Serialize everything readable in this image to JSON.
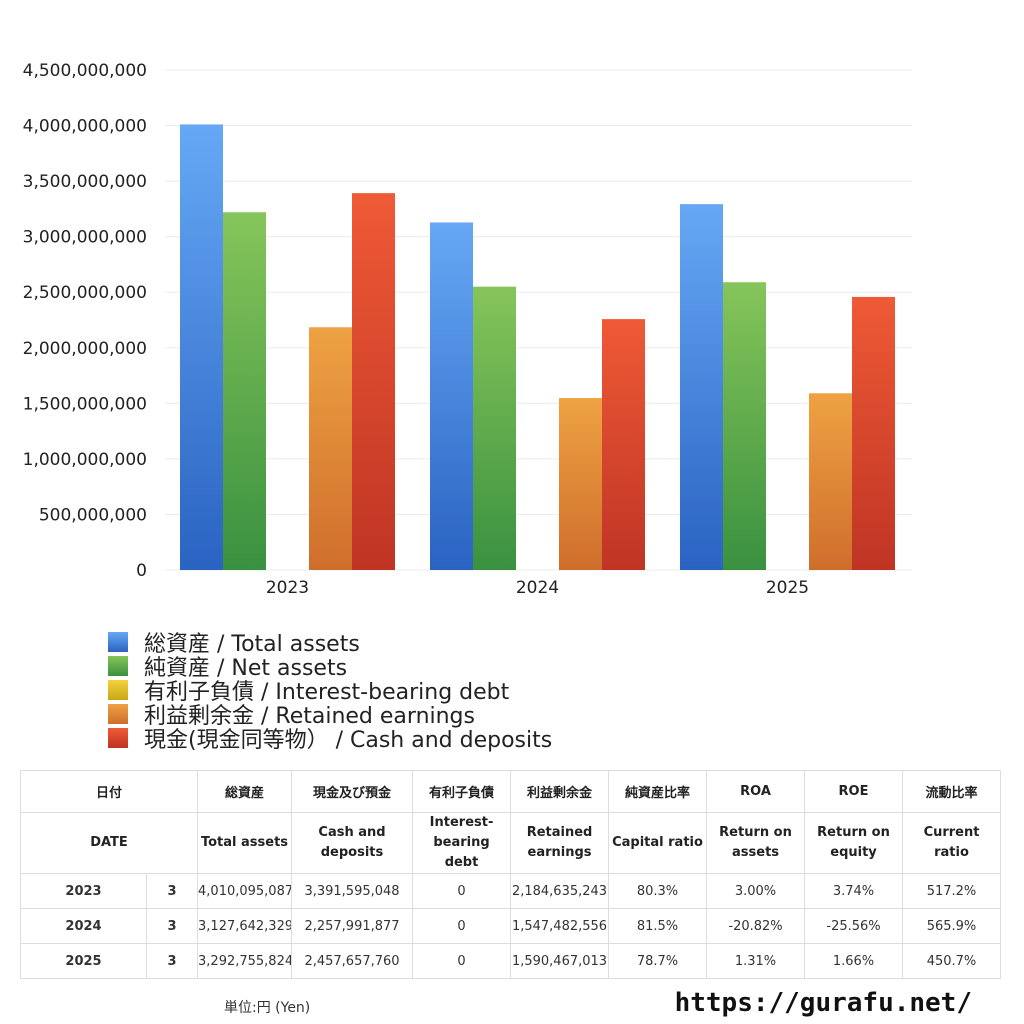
{
  "chart_data": {
    "type": "bar",
    "categories": [
      "2023",
      "2024",
      "2025"
    ],
    "ylim": [
      0,
      4500000000
    ],
    "yticks": [
      0,
      500000000,
      1000000000,
      1500000000,
      2000000000,
      2500000000,
      3000000000,
      3500000000,
      4000000000,
      4500000000
    ],
    "ytick_labels": [
      "0",
      "500,000,000",
      "1,000,000,000",
      "1,500,000,000",
      "2,000,000,000",
      "2,500,000,000",
      "3,000,000,000",
      "3,500,000,000",
      "4,000,000,000",
      "4,500,000,000"
    ],
    "grid": true,
    "legend_position": "bottom-left",
    "series": [
      {
        "name": "総資産 / Total assets",
        "values": [
          4010095087,
          3127642329,
          3292755824
        ],
        "color_top": "#66a8f5",
        "color_bottom": "#2a63c2"
      },
      {
        "name": "純資産 / Net assets",
        "values": [
          3220000000,
          2550000000,
          2590000000
        ],
        "color_top": "#86c55a",
        "color_bottom": "#3a9140"
      },
      {
        "name": "有利子負債 / Interest-bearing debt",
        "values": [
          0,
          0,
          0
        ],
        "color_top": "#f3d23c",
        "color_bottom": "#c9a616"
      },
      {
        "name": "利益剰余金 / Retained earnings",
        "values": [
          2184635243,
          1547482556,
          1590467013
        ],
        "color_top": "#eea242",
        "color_bottom": "#cf6e2c"
      },
      {
        "name": "現金(現金同等物）  /  Cash and deposits",
        "values": [
          3391595048,
          2257991877,
          2457657760
        ],
        "color_top": "#ef5a36",
        "color_bottom": "#bf3424"
      }
    ]
  },
  "table": {
    "headers_jp": [
      "日付",
      "総資産",
      "現金及び預金",
      "有利子負債",
      "利益剰余金",
      "純資産比率",
      "ROA",
      "ROE",
      "流動比率"
    ],
    "headers_en": [
      "DATE",
      "Total assets",
      "Cash and deposits",
      "Interest-bearing debt",
      "Retained earnings",
      "Capital ratio",
      "Return on assets",
      "Return on equity",
      "Current ratio"
    ],
    "rows": [
      {
        "year": "2023",
        "month": "3",
        "total_assets": "4,010,095,087",
        "cash": "3,391,595,048",
        "debt": "0",
        "retained": "2,184,635,243",
        "capital_ratio": "80.3%",
        "roa": "3.00%",
        "roe": "3.74%",
        "current_ratio": "517.2%"
      },
      {
        "year": "2024",
        "month": "3",
        "total_assets": "3,127,642,329",
        "cash": "2,257,991,877",
        "debt": "0",
        "retained": "1,547,482,556",
        "capital_ratio": "81.5%",
        "roa": "-20.82%",
        "roe": "-25.56%",
        "current_ratio": "565.9%"
      },
      {
        "year": "2025",
        "month": "3",
        "total_assets": "3,292,755,824",
        "cash": "2,457,657,760",
        "debt": "0",
        "retained": "1,590,467,013",
        "capital_ratio": "78.7%",
        "roa": "1.31%",
        "roe": "1.66%",
        "current_ratio": "450.7%"
      }
    ],
    "negative_color": "#e0503b"
  },
  "footer": {
    "unit": "単位:円 (Yen)",
    "site": "https://gurafu.net/"
  }
}
